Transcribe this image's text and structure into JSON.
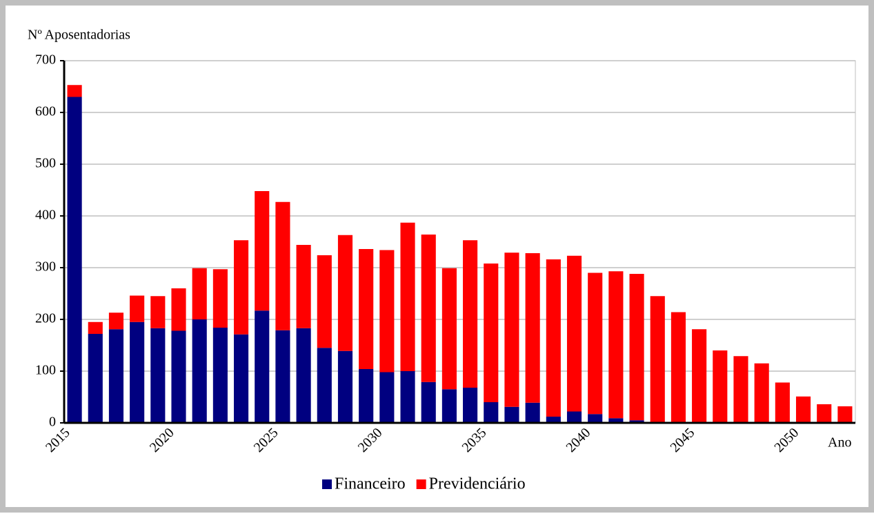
{
  "chart_data": {
    "type": "stacked_bar",
    "y_label": "Nº Aposentadorias",
    "x_label": "Ano",
    "categories": [
      "2015",
      null,
      null,
      null,
      null,
      "2020",
      null,
      null,
      null,
      null,
      "2025",
      null,
      null,
      null,
      null,
      "2030",
      null,
      null,
      null,
      null,
      "2035",
      null,
      null,
      null,
      null,
      "2040",
      null,
      null,
      null,
      null,
      "2045",
      null,
      null,
      null,
      null,
      "2050",
      null,
      null
    ],
    "series": [
      {
        "name": "Financeiro",
        "color": "#000080",
        "values": [
          630,
          172,
          181,
          195,
          183,
          178,
          200,
          184,
          171,
          217,
          179,
          183,
          145,
          139,
          104,
          98,
          100,
          79,
          65,
          68,
          40,
          31,
          39,
          12,
          22,
          17,
          9,
          5,
          2,
          2,
          1,
          1,
          1,
          1,
          0,
          0,
          0,
          0
        ]
      },
      {
        "name": "Previdenciário",
        "color": "#ff0000",
        "values": [
          23,
          23,
          32,
          51,
          62,
          82,
          99,
          113,
          182,
          231,
          248,
          161,
          179,
          224,
          232,
          236,
          287,
          285,
          234,
          285,
          268,
          298,
          289,
          304,
          301,
          273,
          284,
          283,
          243,
          212,
          180,
          139,
          128,
          114,
          78,
          51,
          36,
          32
        ]
      }
    ],
    "ylim": [
      0,
      700
    ],
    "yticks": [
      0,
      100,
      200,
      300,
      400,
      500,
      600,
      700
    ],
    "grid": true,
    "legend": "bottom"
  }
}
